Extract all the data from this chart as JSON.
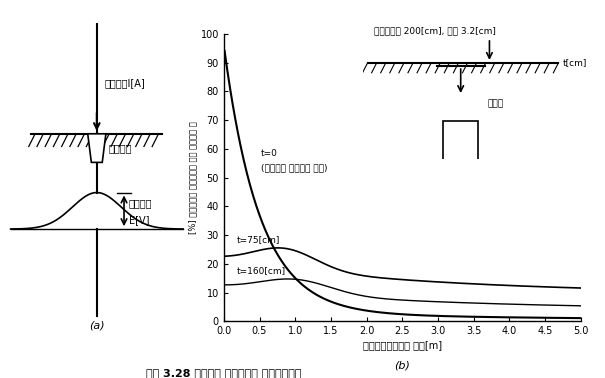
{
  "title_caption": "그림 3.28 접지관의 매설깊이와 지표전위분포",
  "panel_a_label": "(a)",
  "panel_b_label": "(b)",
  "left_label1": "접지전류I[A]",
  "left_label2": "접지전극",
  "left_label3_1": "전위상승",
  "left_label3_2": "E[V]",
  "annotation_top": "접지관길이 200[cm], 지름 3.2[cm]",
  "annotation_tcm": "t[cm]",
  "annotation_pipe": "접지관",
  "curve_t0_label1": "t=0",
  "curve_t0_label2": "(지표면에 충전부가 노출)",
  "curve_t75_label": "t=75[cm]",
  "curve_t160_label": "t=160[cm]",
  "xlabel": "접지관으로부터의 거리[m]",
  "ylabel_chars": [
    "[",
    "%",
    "]",
    " ",
    "매",
    "설",
    "부",
    "분",
    "의",
    " ",
    "접",
    "지",
    "전",
    "위",
    "에",
    " ",
    "대",
    "한",
    " ",
    "지",
    "전",
    "위",
    "의",
    " ",
    "비"
  ],
  "ylabel": "[%] 매설부분의 접지전위에 대한 지전위의 비",
  "xticks": [
    0,
    0.5,
    1.0,
    1.5,
    2.0,
    2.5,
    3.0,
    3.5,
    4.0,
    4.5,
    5.0
  ],
  "yticks": [
    0,
    10,
    20,
    30,
    40,
    50,
    60,
    70,
    80,
    90,
    100
  ],
  "xlim": [
    0,
    5.0
  ],
  "ylim": [
    0,
    100
  ],
  "bg_color": "#ffffff"
}
